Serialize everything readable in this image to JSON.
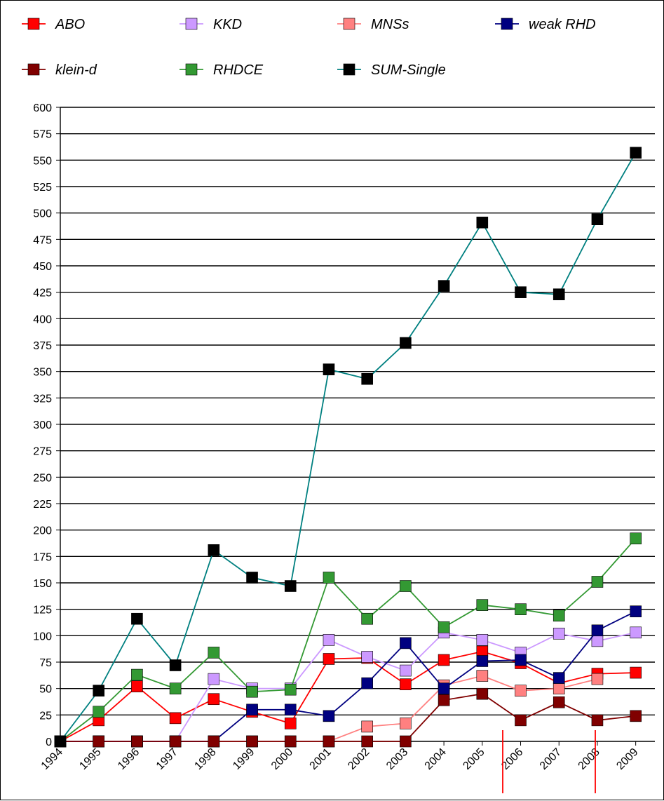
{
  "chart_data": {
    "type": "line",
    "title": "",
    "xlabel": "",
    "ylabel": "",
    "categories": [
      "1994",
      "1995",
      "1996",
      "1997",
      "1998",
      "1999",
      "2000",
      "2001",
      "2002",
      "2003",
      "2004",
      "2005",
      "2006",
      "2007",
      "2008",
      "2009"
    ],
    "ylim": [
      0,
      600
    ],
    "yticks": [
      0,
      25,
      50,
      75,
      100,
      125,
      150,
      175,
      200,
      225,
      250,
      275,
      300,
      325,
      350,
      375,
      400,
      425,
      450,
      475,
      500,
      525,
      550,
      575,
      600
    ],
    "grid": true,
    "legend_position": "top",
    "series": [
      {
        "name": "ABO",
        "color": "#ff0000",
        "values": [
          0,
          20,
          52,
          22,
          40,
          28,
          17,
          78,
          79,
          54,
          77,
          85,
          74,
          55,
          64,
          65
        ]
      },
      {
        "name": "KKD",
        "color": "#cc99ff",
        "values": [
          0,
          0,
          0,
          0,
          59,
          50,
          50,
          96,
          80,
          67,
          103,
          96,
          84,
          102,
          95,
          103
        ]
      },
      {
        "name": "MNSs",
        "color": "#ff8080",
        "values": [
          0,
          0,
          0,
          0,
          0,
          0,
          0,
          0,
          14,
          17,
          53,
          62,
          48,
          50,
          59,
          null
        ]
      },
      {
        "name": "weak RHD",
        "color": "#000080",
        "values": [
          0,
          0,
          0,
          0,
          0,
          30,
          30,
          24,
          55,
          93,
          50,
          76,
          77,
          60,
          105,
          123
        ]
      },
      {
        "name": "klein-d",
        "color": "#800000",
        "values": [
          0,
          0,
          0,
          0,
          0,
          0,
          0,
          0,
          0,
          0,
          39,
          45,
          20,
          37,
          20,
          24
        ]
      },
      {
        "name": "RHDCE",
        "color": "#339933",
        "values": [
          0,
          28,
          63,
          50,
          84,
          47,
          49,
          155,
          116,
          147,
          108,
          129,
          125,
          119,
          151,
          192
        ]
      },
      {
        "name": "SUM-Single",
        "color": "#008080",
        "marker_color": "#000000",
        "values": [
          0,
          48,
          116,
          72,
          181,
          155,
          147,
          352,
          343,
          377,
          431,
          491,
          425,
          423,
          494,
          557
        ]
      }
    ]
  }
}
